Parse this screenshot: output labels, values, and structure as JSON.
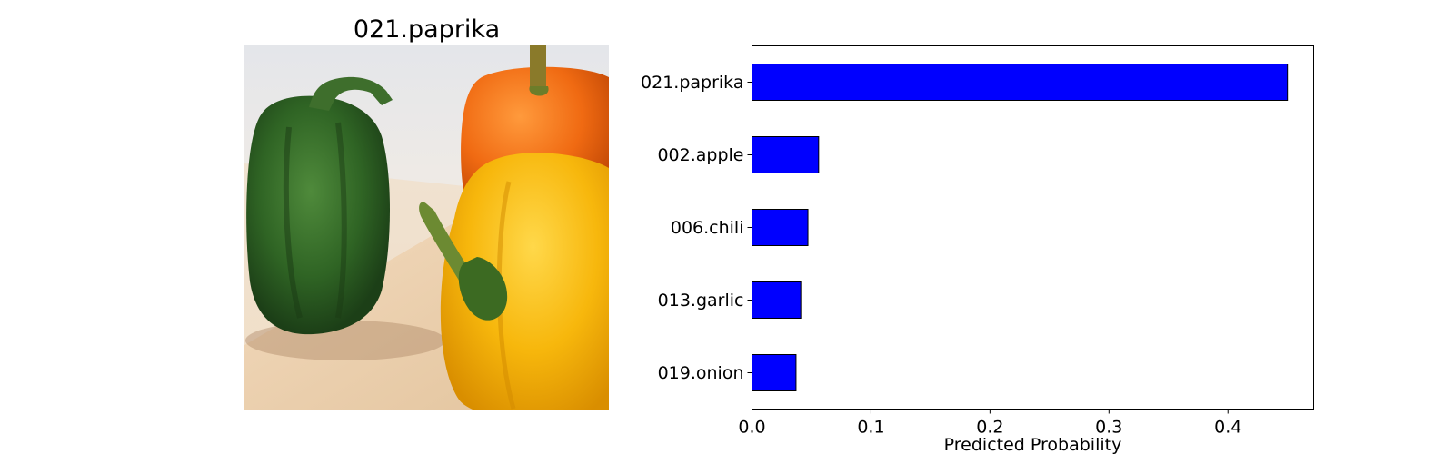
{
  "photo": {
    "title": "021.paprika"
  },
  "chart_data": {
    "type": "bar",
    "orientation": "horizontal",
    "categories": [
      "021.paprika",
      "002.apple",
      "006.chili",
      "013.garlic",
      "019.onion"
    ],
    "values": [
      0.45,
      0.056,
      0.047,
      0.041,
      0.037
    ],
    "title": "",
    "xlabel": "Predicted Probability",
    "ylabel": "",
    "xlim": [
      0,
      0.472
    ],
    "xticks": [
      0.0,
      0.1,
      0.2,
      0.3,
      0.4
    ],
    "xtick_labels": [
      "0.0",
      "0.1",
      "0.2",
      "0.3",
      "0.4"
    ],
    "grid": false,
    "legend": "none",
    "bar_color": "#0000ff",
    "bar_edge_color": "#000000"
  }
}
